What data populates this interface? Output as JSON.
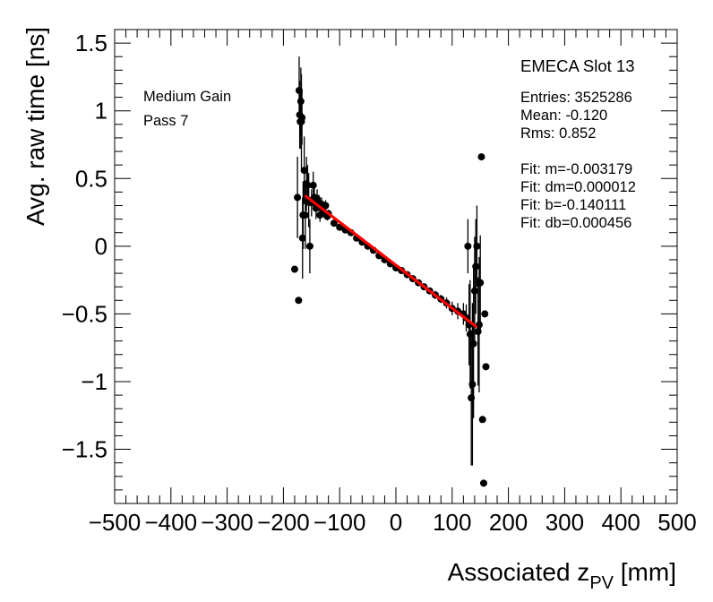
{
  "chart_data": {
    "type": "scatter",
    "title": "",
    "xlabel": "Associated z",
    "xlabel_sub": "PV",
    "xlabel_unit": " [mm]",
    "ylabel": "Avg. raw time [ns]",
    "xlim": [
      -500,
      500
    ],
    "ylim": [
      -1.9,
      1.6
    ],
    "xticks": [
      -500,
      -400,
      -300,
      -200,
      -100,
      0,
      100,
      200,
      300,
      400,
      500
    ],
    "xtick_labels": [
      "−500",
      "−400",
      "−300",
      "−200",
      "−100",
      "0",
      "100",
      "200",
      "300",
      "400",
      "500"
    ],
    "yticks": [
      1.5,
      1,
      0.5,
      0,
      -0.5,
      -1,
      -1.5
    ],
    "ytick_labels": [
      "1.5",
      "1",
      "0.5",
      "0",
      "−0.5",
      "−1",
      "−1.5"
    ],
    "annotations": {
      "gain": "Medium Gain",
      "pass": "Pass 7"
    },
    "stats": {
      "title": "EMECA Slot 13",
      "entries": "Entries: 3525286",
      "mean": "Mean: -0.120",
      "rms": "Rms: 0.852",
      "fit_m": "Fit: m=-0.003179",
      "fit_dm": "Fit: dm=0.000012",
      "fit_b": "Fit: b=-0.140111",
      "fit_db": "Fit: db=0.000456"
    },
    "fit": {
      "m": -0.003179,
      "b": -0.140111,
      "x_range": [
        -160,
        142
      ],
      "color": "#ff0000"
    },
    "marker_color": "#000000",
    "series": [
      {
        "name": "profile",
        "x": [
          -180,
          -175,
          -173,
          -172,
          -171,
          -170,
          -169,
          -168,
          -167,
          -166,
          -165,
          -163,
          -161,
          -159,
          -157,
          -155,
          -153,
          -150,
          -147,
          -145,
          -142,
          -140,
          -137,
          -135,
          -132,
          -130,
          -128,
          -125,
          -122,
          -120,
          -110,
          -100,
          -90,
          -80,
          -70,
          -60,
          -50,
          -40,
          -30,
          -20,
          -10,
          0,
          10,
          20,
          30,
          40,
          50,
          60,
          70,
          80,
          90,
          100,
          110,
          120,
          125,
          128,
          130,
          132,
          134,
          136,
          138,
          140,
          142,
          144,
          146,
          148,
          150,
          152,
          154,
          156,
          158,
          160
        ],
        "y": [
          -0.17,
          0.36,
          -0.4,
          1.15,
          0.97,
          0.92,
          1.07,
          0.92,
          0.95,
          0.06,
          0.23,
          0.56,
          0.23,
          0.46,
          0.45,
          0.34,
          0.0,
          0.32,
          0.45,
          0.36,
          0.28,
          0.35,
          0.32,
          0.23,
          0.31,
          0.28,
          0.25,
          0.3,
          0.22,
          0.24,
          0.17,
          0.14,
          0.12,
          0.1,
          0.06,
          0.03,
          0.0,
          -0.03,
          -0.07,
          -0.1,
          -0.13,
          -0.16,
          -0.18,
          -0.21,
          -0.24,
          -0.27,
          -0.3,
          -0.33,
          -0.36,
          -0.39,
          -0.42,
          -0.46,
          -0.48,
          -0.5,
          -0.53,
          0.0,
          -0.58,
          -0.65,
          -1.12,
          -1.02,
          -0.72,
          -0.33,
          -0.15,
          0.0,
          -0.63,
          -0.58,
          -0.27,
          0.66,
          -1.28,
          -1.75,
          -0.5,
          -0.89
        ],
        "err": [
          0.0,
          0.3,
          0.0,
          0.25,
          0.25,
          0.2,
          0.25,
          0.35,
          0.2,
          0.3,
          0.25,
          0.25,
          0.25,
          0.2,
          0.15,
          0.2,
          0.2,
          0.1,
          0.1,
          0.08,
          0.08,
          0.07,
          0.06,
          0.05,
          0.05,
          0.05,
          0.04,
          0.04,
          0.03,
          0.03,
          0.02,
          0.02,
          0.02,
          0.01,
          0.01,
          0.01,
          0.01,
          0.01,
          0.01,
          0.01,
          0.01,
          0.01,
          0.01,
          0.01,
          0.01,
          0.01,
          0.02,
          0.02,
          0.03,
          0.03,
          0.04,
          0.05,
          0.06,
          0.08,
          0.1,
          0.2,
          0.3,
          0.4,
          0.5,
          0.6,
          0.55,
          0.4,
          0.35,
          0.3,
          0.4,
          0.5,
          0.35,
          0.0,
          0.0,
          0.0,
          0.0,
          0.0
        ]
      }
    ]
  }
}
